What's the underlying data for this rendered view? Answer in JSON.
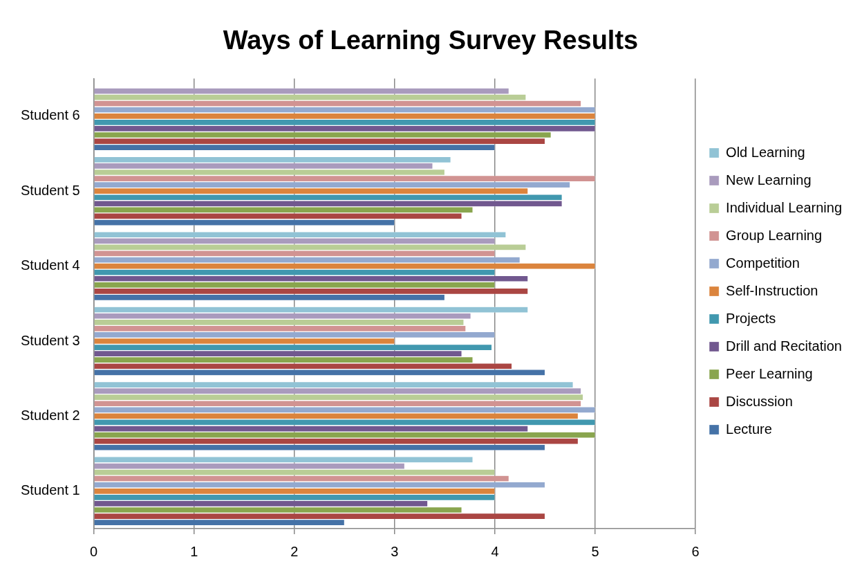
{
  "chart_data": {
    "type": "bar",
    "orientation": "horizontal",
    "title": "Ways of Learning Survey Results",
    "categories": [
      "Student 6",
      "Student 5",
      "Student 4",
      "Student 3",
      "Student 2",
      "Student 1"
    ],
    "series": [
      {
        "name": "Old Learning",
        "color": "#91c3d5",
        "values": [
          null,
          3.56,
          4.11,
          4.33,
          4.78,
          3.78
        ]
      },
      {
        "name": "New Learning",
        "color": "#a99bbd",
        "values": [
          4.14,
          3.38,
          4,
          3.76,
          4.86,
          3.1
        ]
      },
      {
        "name": "Individual Learning",
        "color": "#b9cd96",
        "values": [
          4.31,
          3.5,
          4.31,
          3.69,
          4.88,
          4
        ]
      },
      {
        "name": "Group Learning",
        "color": "#d19392",
        "values": [
          4.86,
          5,
          4,
          3.71,
          4.86,
          4.14
        ]
      },
      {
        "name": "Competition",
        "color": "#93a9cf",
        "values": [
          5,
          4.75,
          4.25,
          4,
          5,
          4.5
        ]
      },
      {
        "name": "Self-Instruction",
        "color": "#db843d",
        "values": [
          5,
          4.33,
          5,
          3,
          4.83,
          4
        ]
      },
      {
        "name": "Projects",
        "color": "#4198af",
        "values": [
          5,
          4.67,
          4,
          3.97,
          5,
          4
        ]
      },
      {
        "name": "Drill and Recitation",
        "color": "#71588f",
        "values": [
          5,
          4.67,
          4.33,
          3.67,
          4.33,
          3.33
        ]
      },
      {
        "name": "Peer Learning",
        "color": "#89a54e",
        "values": [
          4.56,
          3.78,
          4,
          3.78,
          5,
          3.67
        ]
      },
      {
        "name": "Discussion",
        "color": "#aa4643",
        "values": [
          4.5,
          3.67,
          4.33,
          4.17,
          4.83,
          4.5
        ]
      },
      {
        "name": "Lecture",
        "color": "#4572a7",
        "values": [
          4,
          3,
          3.5,
          4.5,
          4.5,
          2.5
        ]
      }
    ],
    "xlim": [
      0,
      6
    ],
    "xticks": [
      0,
      1,
      2,
      3,
      4,
      5,
      6
    ],
    "grid": "x",
    "legend": "right"
  }
}
